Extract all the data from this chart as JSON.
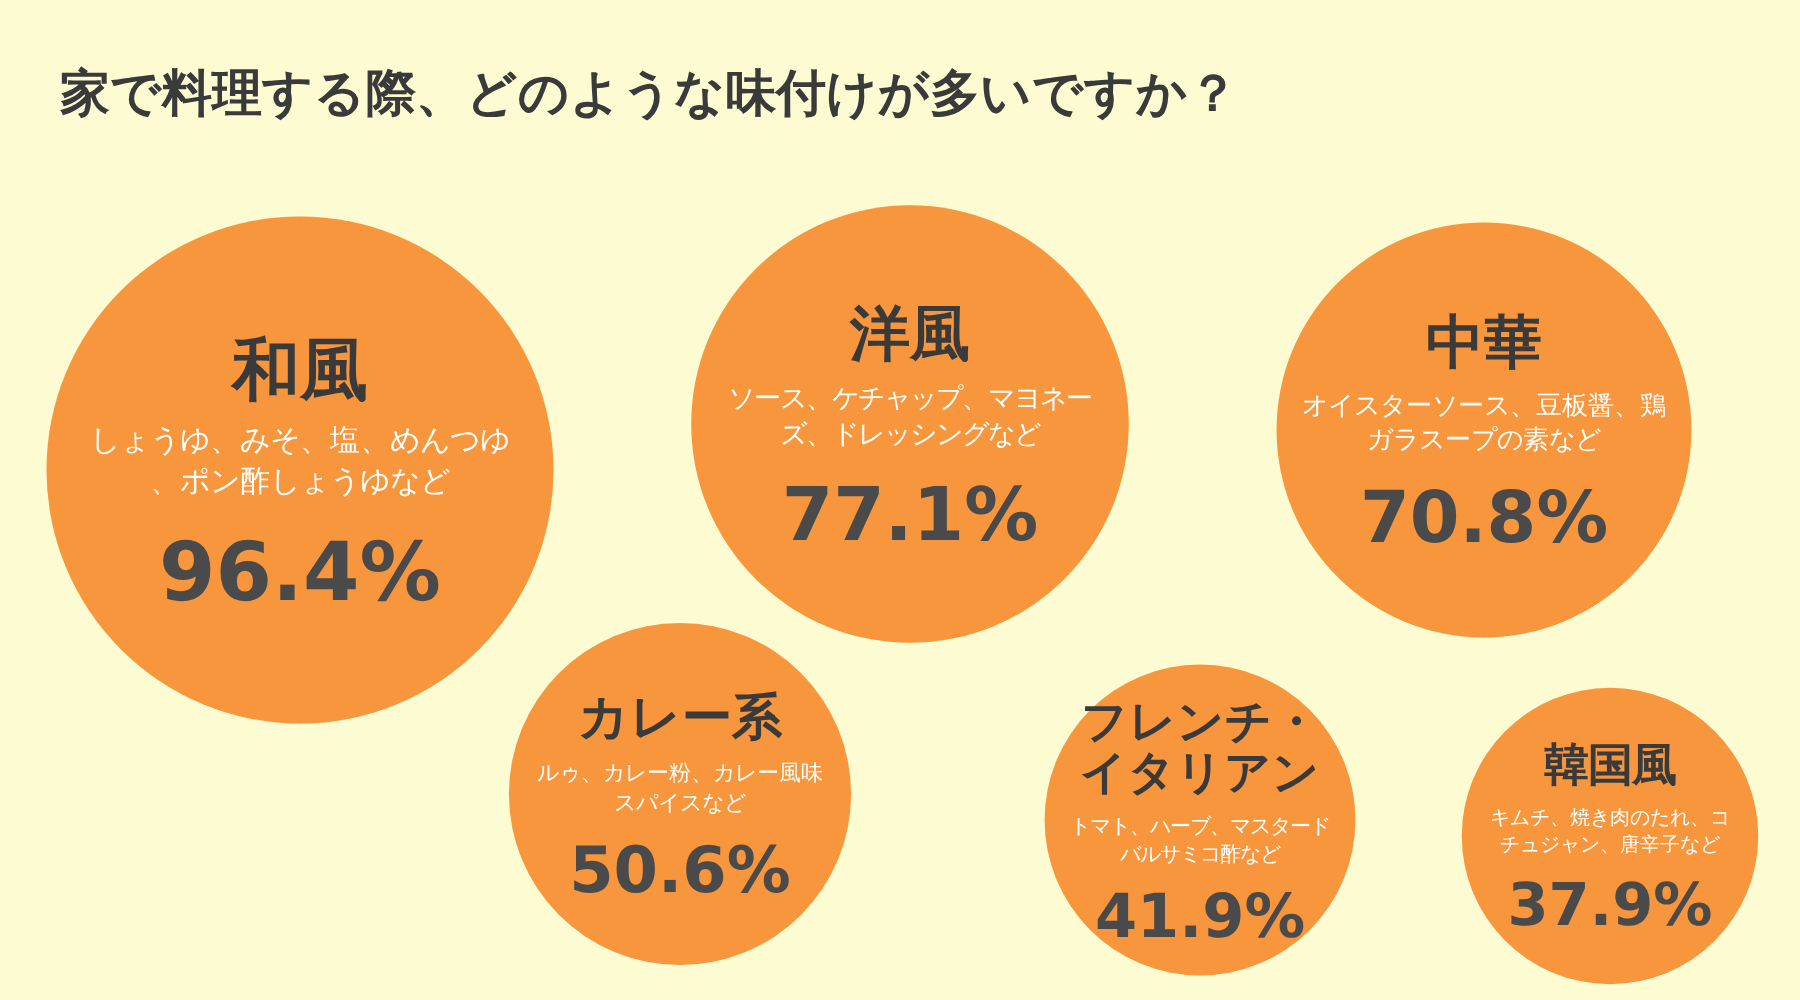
{
  "chart_data": {
    "type": "other",
    "title": "家で料理する際、どのような味付けが多いですか？",
    "categories": [
      "和風",
      "洋風",
      "中華",
      "カレー系",
      "フレンチ・イタリアン",
      "韓国風"
    ],
    "values": [
      96.4,
      77.1,
      70.8,
      50.6,
      41.9,
      37.9
    ],
    "value_labels": [
      "96.4%",
      "77.1%",
      "70.8%",
      "50.6%",
      "41.9%",
      "37.9%"
    ],
    "color": "#f7963c",
    "annotations": [
      "しょうゆ、みそ、塩、めんつゆ、ポン酢しょうゆなど",
      "ソース、ケチャップ、マヨネーズ、ドレッシングなど",
      "オイスターソース、豆板醤、鶏ガラスープの素など",
      "ルゥ、カレー粉、カレー風味スパイスなど",
      "トマト、ハーブ、マスタードバルサミコ酢など",
      "キムチ、焼き肉のたれ、コチュジャン、唐辛子など"
    ]
  }
}
